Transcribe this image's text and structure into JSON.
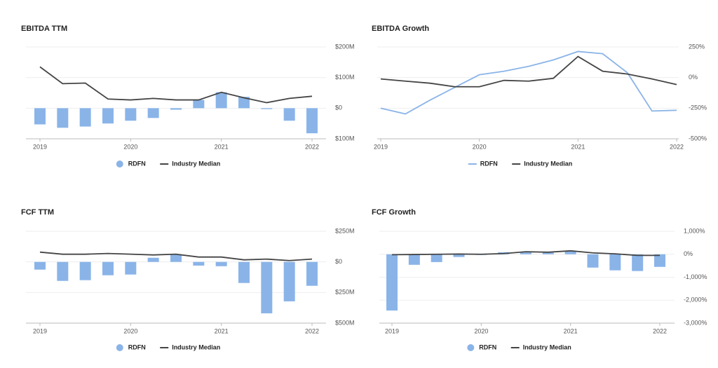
{
  "chart_data": [
    {
      "type": "bar",
      "title": "EBITDA TTM",
      "categories": [
        "2019",
        null,
        null,
        null,
        "2020",
        null,
        null,
        null,
        "2021",
        null,
        null,
        null,
        "2022"
      ],
      "series": [
        {
          "name": "RDFN",
          "type": "bar",
          "color": "#8ab4e8",
          "values": [
            -53,
            -64,
            -60,
            -50,
            -41,
            -32,
            -5,
            27,
            52,
            37,
            -3,
            -41,
            -82
          ]
        },
        {
          "name": "Industry Median",
          "type": "line",
          "color": "#444444",
          "values": [
            135,
            80,
            82,
            30,
            27,
            32,
            27,
            27,
            52,
            34,
            18,
            32,
            39
          ]
        }
      ],
      "ylim": [
        -100,
        200
      ],
      "yticks": [
        {
          "value": 200,
          "label": "$200M"
        },
        {
          "value": 100,
          "label": "$100M"
        },
        {
          "value": 0,
          "label": "$0"
        },
        {
          "value": -100,
          "label": "$100M"
        }
      ],
      "grid": true
    },
    {
      "type": "line",
      "title": "EBITDA Growth",
      "categories": [
        "2019",
        null,
        null,
        null,
        "2020",
        null,
        null,
        null,
        "2021",
        null,
        null,
        null,
        "2022"
      ],
      "series": [
        {
          "name": "RDFN",
          "type": "line",
          "color": "#8ab4e8",
          "values": [
            -250,
            -297,
            -184,
            -80,
            23,
            52,
            92,
            144,
            213,
            195,
            40,
            -273,
            -267
          ]
        },
        {
          "name": "Industry Median",
          "type": "line",
          "color": "#444444",
          "values": [
            -11,
            -29,
            -46,
            -75,
            -75,
            -23,
            -29,
            -6,
            172,
            52,
            29,
            -11,
            -57
          ]
        }
      ],
      "ylim": [
        -500,
        250
      ],
      "yticks": [
        {
          "value": 250,
          "label": "250%"
        },
        {
          "value": 0,
          "label": "0%"
        },
        {
          "value": -250,
          "label": "-250%"
        },
        {
          "value": -500,
          "label": "-500%"
        }
      ],
      "grid": true
    },
    {
      "type": "bar",
      "title": "FCF TTM",
      "categories": [
        "2019",
        null,
        null,
        null,
        "2020",
        null,
        null,
        null,
        "2021",
        null,
        null,
        null,
        "2022"
      ],
      "series": [
        {
          "name": "RDFN",
          "type": "bar",
          "color": "#8ab4e8",
          "values": [
            -63,
            -155,
            -149,
            -109,
            -103,
            34,
            63,
            -30,
            -35,
            -172,
            -420,
            -322,
            -195
          ]
        },
        {
          "name": "Industry Median",
          "type": "line",
          "color": "#444444",
          "values": [
            80,
            63,
            63,
            69,
            63,
            57,
            63,
            40,
            40,
            17,
            23,
            11,
            23
          ]
        }
      ],
      "ylim": [
        -500,
        250
      ],
      "yticks": [
        {
          "value": 250,
          "label": "$250M"
        },
        {
          "value": 0,
          "label": "$0"
        },
        {
          "value": -250,
          "label": "$250M"
        },
        {
          "value": -500,
          "label": "$500M"
        }
      ],
      "grid": true
    },
    {
      "type": "bar",
      "title": "FCF Growth",
      "categories": [
        "2019",
        null,
        null,
        null,
        "2020",
        null,
        null,
        null,
        "2021",
        null,
        null,
        null,
        "2022"
      ],
      "series": [
        {
          "name": "RDFN",
          "type": "bar",
          "color": "#8ab4e8",
          "values": [
            -2450,
            -460,
            -340,
            -120,
            -30,
            90,
            80,
            70,
            120,
            -580,
            -700,
            -730,
            -550
          ]
        },
        {
          "name": "Industry Median",
          "type": "line",
          "color": "#444444",
          "values": [
            -20,
            -10,
            0,
            10,
            0,
            30,
            110,
            90,
            150,
            60,
            20,
            -50,
            -50
          ]
        }
      ],
      "ylim": [
        -3000,
        1000
      ],
      "yticks": [
        {
          "value": 1000,
          "label": "1,000%"
        },
        {
          "value": 0,
          "label": "0%"
        },
        {
          "value": -1000,
          "label": "-1,000%"
        },
        {
          "value": -2000,
          "label": "-2,000%"
        },
        {
          "value": -3000,
          "label": "-3,000%"
        }
      ],
      "grid": true
    }
  ]
}
